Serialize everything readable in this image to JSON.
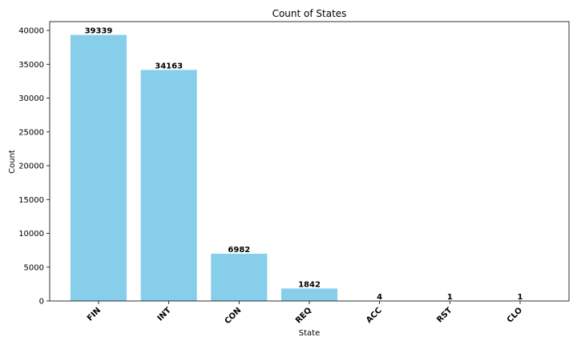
{
  "chart_data": {
    "type": "bar",
    "title": "Count of States",
    "xlabel": "State",
    "ylabel": "Count",
    "categories": [
      "FIN",
      "INT",
      "CON",
      "REQ",
      "ACC",
      "RST",
      "CLO"
    ],
    "values": [
      39339,
      34163,
      6982,
      1842,
      4,
      1,
      1
    ],
    "ylim": [
      0,
      41306
    ],
    "yticks": [
      0,
      5000,
      10000,
      15000,
      20000,
      25000,
      30000,
      35000,
      40000
    ],
    "grid": false,
    "legend": "none",
    "bar_color": "#87ceeb",
    "axis_color": "#000000"
  }
}
